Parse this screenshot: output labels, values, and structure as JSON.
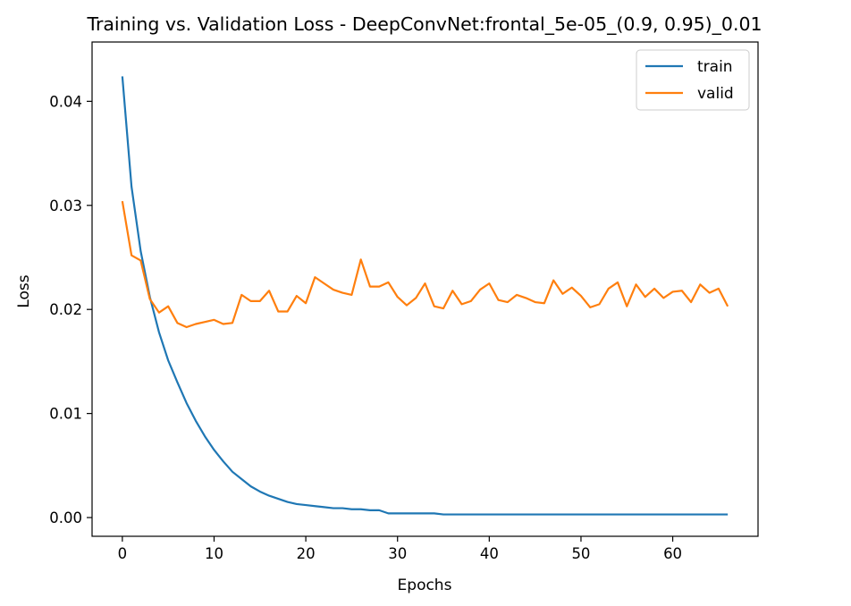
{
  "chart_data": {
    "type": "line",
    "title": "Training vs. Validation Loss - DeepConvNet:frontal_5e-05_(0.9, 0.95)_0.01",
    "xlabel": "Epochs",
    "ylabel": "Loss",
    "xlim": [
      -3.3,
      69.3
    ],
    "ylim": [
      -0.0018,
      0.0457
    ],
    "xticks": [
      0,
      10,
      20,
      30,
      40,
      50,
      60
    ],
    "yticks": [
      0.0,
      0.01,
      0.02,
      0.03,
      0.04
    ],
    "xtick_labels": [
      "0",
      "10",
      "20",
      "30",
      "40",
      "50",
      "60"
    ],
    "ytick_labels": [
      "0.00",
      "0.01",
      "0.02",
      "0.03",
      "0.04"
    ],
    "grid": false,
    "legend_position": "top-right",
    "series": [
      {
        "name": "train",
        "color": "#1f77b4",
        "values": [
          0.0424,
          0.0318,
          0.0256,
          0.0212,
          0.0178,
          0.0151,
          0.013,
          0.011,
          0.0093,
          0.0078,
          0.0065,
          0.0054,
          0.0044,
          0.0037,
          0.003,
          0.0025,
          0.0021,
          0.0018,
          0.0015,
          0.0013,
          0.0012,
          0.0011,
          0.001,
          0.0009,
          0.0009,
          0.0008,
          0.0008,
          0.0007,
          0.0007,
          0.0004,
          0.0004,
          0.0004,
          0.0004,
          0.0004,
          0.0004,
          0.0003,
          0.0003,
          0.0003,
          0.0003,
          0.0003,
          0.0003,
          0.0003,
          0.0003,
          0.0003,
          0.0003,
          0.0003,
          0.0003,
          0.0003,
          0.0003,
          0.0003,
          0.0003,
          0.0003,
          0.0003,
          0.0003,
          0.0003,
          0.0003,
          0.0003,
          0.0003,
          0.0003,
          0.0003,
          0.0003,
          0.0003,
          0.0003,
          0.0003,
          0.0003,
          0.0003,
          0.0003
        ]
      },
      {
        "name": "valid",
        "color": "#ff7f0e",
        "values": [
          0.0304,
          0.0252,
          0.0247,
          0.021,
          0.0197,
          0.0203,
          0.0187,
          0.0183,
          0.0186,
          0.0188,
          0.019,
          0.0186,
          0.0187,
          0.0214,
          0.0208,
          0.0208,
          0.0218,
          0.0198,
          0.0198,
          0.0213,
          0.0206,
          0.0231,
          0.0225,
          0.0219,
          0.0216,
          0.0214,
          0.0248,
          0.0222,
          0.0222,
          0.0226,
          0.0212,
          0.0204,
          0.0211,
          0.0225,
          0.0203,
          0.0201,
          0.0218,
          0.0205,
          0.0208,
          0.0219,
          0.0225,
          0.0209,
          0.0207,
          0.0214,
          0.0211,
          0.0207,
          0.0206,
          0.0228,
          0.0215,
          0.0221,
          0.0213,
          0.0202,
          0.0205,
          0.022,
          0.0226,
          0.0203,
          0.0224,
          0.0212,
          0.022,
          0.0211,
          0.0217,
          0.0218,
          0.0207,
          0.0224,
          0.0216,
          0.022,
          0.0203
        ]
      }
    ]
  }
}
